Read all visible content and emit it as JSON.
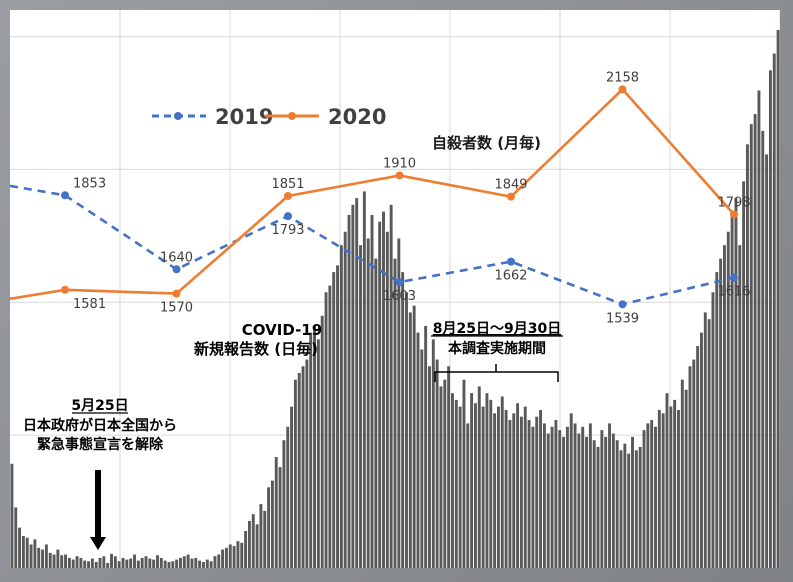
{
  "chart_data": {
    "type": "line",
    "series": [
      {
        "name": "2019",
        "color": "#4472c4",
        "dash": true,
        "values": [
          1853,
          1640,
          1793,
          1603,
          1662,
          1539,
          1616
        ],
        "lead_in_value": 1880
      },
      {
        "name": "2020",
        "color": "#ed7d31",
        "dash": false,
        "values": [
          1581,
          1570,
          1851,
          1910,
          1849,
          2158,
          1798
        ],
        "lead_in_value": 1555
      }
    ],
    "line_ylim": [
      1350,
      2300
    ],
    "monthly_title": "自殺者数 (月毎)",
    "daily": {
      "title_line1": "COVID-19",
      "title_line2": "新規報告数 (日毎)",
      "color": "#595959",
      "ylim": [
        0,
        1600
      ],
      "values": [
        310,
        180,
        120,
        95,
        90,
        70,
        85,
        60,
        55,
        70,
        45,
        40,
        55,
        38,
        40,
        30,
        25,
        35,
        30,
        22,
        20,
        28,
        18,
        30,
        35,
        15,
        42,
        35,
        20,
        30,
        25,
        28,
        40,
        22,
        30,
        35,
        28,
        25,
        38,
        30,
        22,
        18,
        20,
        25,
        30,
        35,
        40,
        28,
        30,
        22,
        18,
        25,
        20,
        35,
        40,
        55,
        60,
        70,
        65,
        80,
        75,
        110,
        140,
        160,
        130,
        190,
        170,
        240,
        260,
        330,
        300,
        380,
        420,
        480,
        560,
        580,
        600,
        620,
        700,
        720,
        680,
        750,
        820,
        840,
        880,
        900,
        960,
        1000,
        1050,
        1080,
        1100,
        960,
        1120,
        980,
        1050,
        920,
        1030,
        1060,
        1000,
        1080,
        920,
        980,
        880,
        820,
        760,
        780,
        700,
        650,
        720,
        600,
        680,
        620,
        540,
        560,
        600,
        520,
        500,
        480,
        560,
        430,
        520,
        490,
        540,
        480,
        520,
        500,
        460,
        480,
        510,
        470,
        440,
        460,
        490,
        450,
        480,
        440,
        420,
        450,
        470,
        430,
        400,
        420,
        440,
        410,
        390,
        420,
        460,
        430,
        400,
        420,
        390,
        430,
        380,
        360,
        410,
        390,
        430,
        400,
        380,
        350,
        370,
        340,
        390,
        350,
        360,
        410,
        430,
        440,
        420,
        470,
        460,
        520,
        480,
        500,
        470,
        560,
        530,
        600,
        620,
        660,
        700,
        760,
        740,
        820,
        880,
        920,
        960,
        1000,
        1050,
        1100,
        960,
        1150,
        1260,
        1320,
        1350,
        1420,
        1300,
        1230,
        1480,
        1530,
        1600
      ]
    },
    "annotation_may": {
      "title": "5月25日",
      "line1": "日本政府が日本全国から",
      "line2": "緊急事態宣言を解除"
    },
    "annotation_period": {
      "title": "8月25日〜9月30日",
      "line1": "本調査実施期間"
    }
  }
}
